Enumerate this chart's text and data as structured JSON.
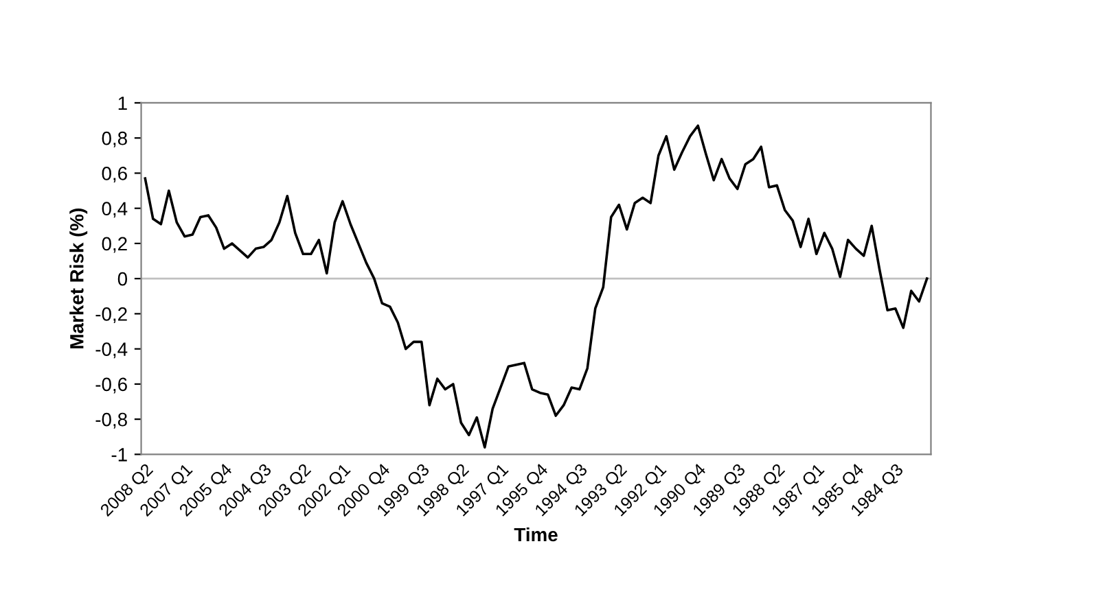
{
  "chart_data": {
    "type": "line",
    "xlabel": "Time",
    "ylabel": "Market Risk (%)",
    "categories": [
      "2008 Q2",
      null,
      null,
      null,
      null,
      "2007 Q1",
      null,
      null,
      null,
      null,
      "2005 Q4",
      null,
      null,
      null,
      null,
      "2004 Q3",
      null,
      null,
      null,
      null,
      "2003 Q2",
      null,
      null,
      null,
      null,
      "2002 Q1",
      null,
      null,
      null,
      null,
      "2000 Q4",
      null,
      null,
      null,
      null,
      "1999 Q3",
      null,
      null,
      null,
      null,
      "1998 Q2",
      null,
      null,
      null,
      null,
      "1997 Q1",
      null,
      null,
      null,
      null,
      "1995 Q4",
      null,
      null,
      null,
      null,
      "1994 Q3",
      null,
      null,
      null,
      null,
      "1993 Q2",
      null,
      null,
      null,
      null,
      "1992 Q1",
      null,
      null,
      null,
      null,
      "1990 Q4",
      null,
      null,
      null,
      null,
      "1989 Q3",
      null,
      null,
      null,
      null,
      "1988 Q2",
      null,
      null,
      null,
      null,
      "1987 Q1",
      null,
      null,
      null,
      null,
      "1985 Q4",
      null,
      null,
      null,
      null,
      "1984 Q3",
      null,
      null,
      null,
      null
    ],
    "series": [
      {
        "color": "#000000",
        "values": [
          0.57,
          0.34,
          0.31,
          0.5,
          0.32,
          0.24,
          0.25,
          0.35,
          0.36,
          0.29,
          0.17,
          0.2,
          0.16,
          0.12,
          0.17,
          0.18,
          0.22,
          0.32,
          0.47,
          0.26,
          0.14,
          0.14,
          0.22,
          0.03,
          0.32,
          0.44,
          0.31,
          0.2,
          0.09,
          0.0,
          -0.14,
          -0.16,
          -0.25,
          -0.4,
          -0.36,
          -0.36,
          -0.72,
          -0.57,
          -0.63,
          -0.6,
          -0.82,
          -0.89,
          -0.79,
          -0.96,
          -0.74,
          -0.62,
          -0.5,
          -0.49,
          -0.48,
          -0.63,
          -0.65,
          -0.66,
          -0.78,
          -0.72,
          -0.62,
          -0.63,
          -0.51,
          -0.17,
          -0.05,
          0.35,
          0.42,
          0.28,
          0.43,
          0.46,
          0.43,
          0.7,
          0.81,
          0.62,
          0.72,
          0.81,
          0.87,
          0.71,
          0.56,
          0.68,
          0.57,
          0.51,
          0.65,
          0.68,
          0.75,
          0.52,
          0.53,
          0.39,
          0.33,
          0.18,
          0.34,
          0.14,
          0.26,
          0.17,
          0.01,
          0.22,
          0.17,
          0.13,
          0.3,
          0.05,
          -0.18,
          -0.17,
          -0.28,
          -0.07,
          -0.13,
          0.0
        ]
      }
    ],
    "ylim": [
      -1,
      1
    ],
    "yticks": [
      {
        "value": -1,
        "label": "-1"
      },
      {
        "value": -0.8,
        "label": "-0,8"
      },
      {
        "value": -0.6,
        "label": "-0,6"
      },
      {
        "value": -0.4,
        "label": "-0,4"
      },
      {
        "value": -0.2,
        "label": "-0,2"
      },
      0,
      {
        "value": 0.2,
        "label": "0,2"
      },
      {
        "value": 0.4,
        "label": "0,4"
      },
      {
        "value": 0.6,
        "label": "0,6"
      },
      {
        "value": 0.8,
        "label": "0,8"
      },
      1
    ],
    "ref_lines": [
      {
        "axis": "y",
        "value": 0,
        "color": "#c0c0c0"
      }
    ],
    "grid": false,
    "marker": "none",
    "line_style": "solid"
  }
}
